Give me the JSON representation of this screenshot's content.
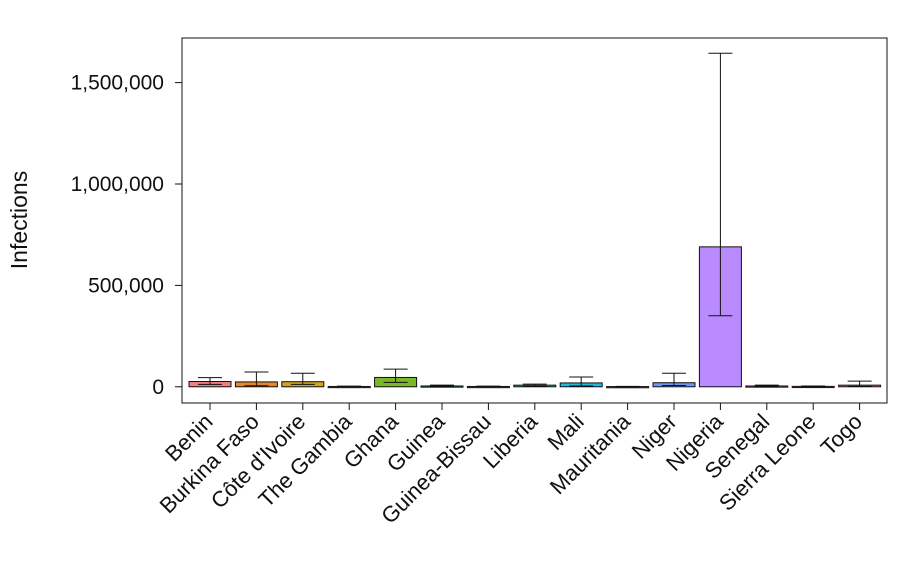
{
  "chart_data": {
    "type": "bar",
    "title": "",
    "xlabel": "",
    "ylabel": "Infections",
    "ylim": [
      -80000,
      1720000
    ],
    "yticks": [
      0,
      500000,
      1000000,
      1500000
    ],
    "ytick_labels": [
      "0",
      "500,000",
      "1,000,000",
      "1,500,000"
    ],
    "grid": false,
    "legend": "none",
    "categories": [
      "Benin",
      "Burkina Faso",
      "Côte d'Ivoire",
      "The Gambia",
      "Ghana",
      "Guinea",
      "Guinea-Bissau",
      "Liberia",
      "Mali",
      "Mauritania",
      "Niger",
      "Nigeria",
      "Senegal",
      "Sierra Leone",
      "Togo"
    ],
    "values": [
      26000,
      24000,
      25000,
      1500,
      46000,
      4000,
      1500,
      8000,
      19000,
      1000,
      20000,
      690000,
      4000,
      2000,
      8000
    ],
    "error_low": [
      12000,
      5000,
      12000,
      500,
      22000,
      1000,
      500,
      2000,
      4000,
      300,
      6000,
      350000,
      1000,
      500,
      2000
    ],
    "error_high": [
      45000,
      73000,
      67000,
      3000,
      87000,
      8000,
      3000,
      13000,
      48000,
      2000,
      67000,
      1645000,
      8000,
      4000,
      28000
    ],
    "colors": [
      "#f07f7f",
      "#e8862a",
      "#d8a31c",
      "#a6a81a",
      "#7cb62a",
      "#34c470",
      "#2fc4a6",
      "#27c0c6",
      "#22b8e0",
      "#38a8f4",
      "#6f97f7",
      "#b98bff",
      "#df76ec",
      "#f36cc4",
      "#f6749a"
    ]
  }
}
